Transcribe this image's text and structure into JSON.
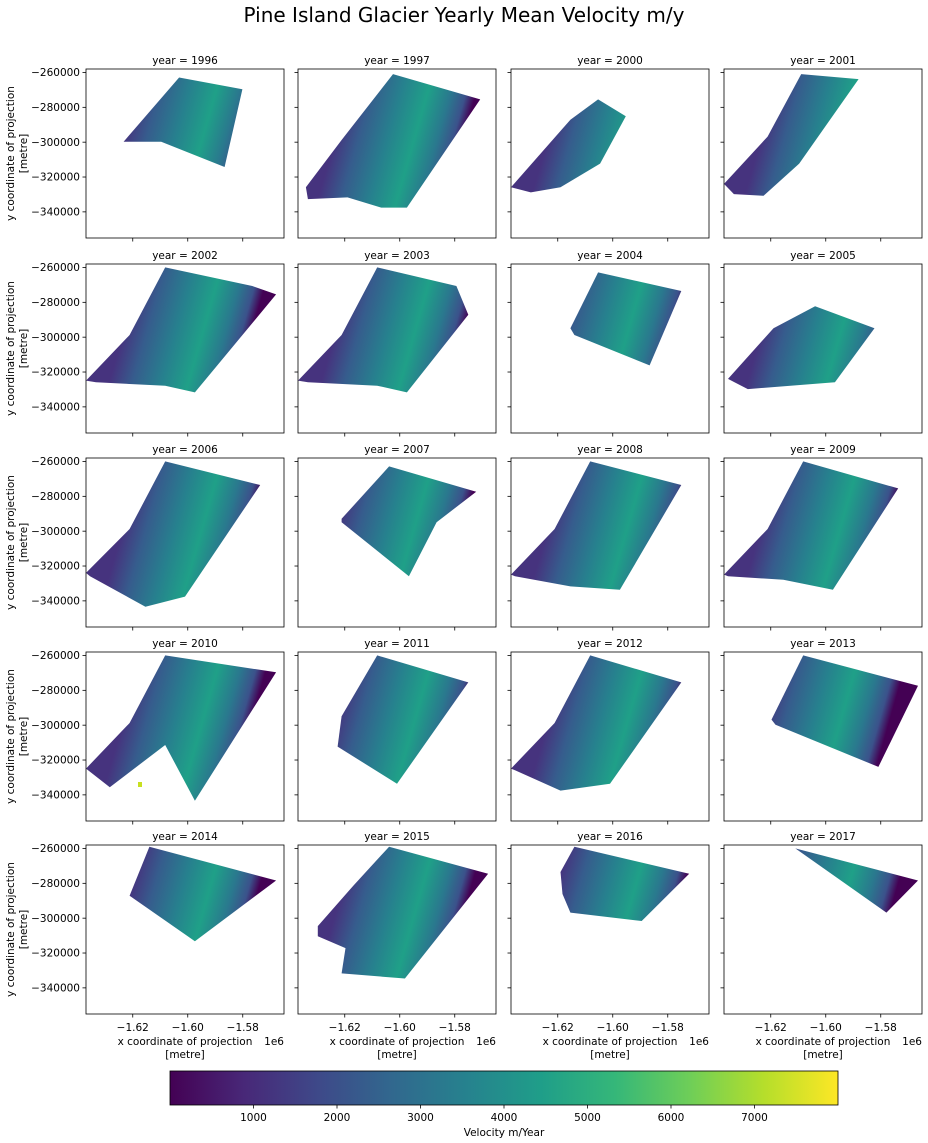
{
  "chart_data": {
    "type": "heatmap",
    "title": "Pine Island Glacier Yearly Mean Velocity m/y",
    "facet_title_template": "year = {year}",
    "years": [
      1996,
      1997,
      2000,
      2001,
      2002,
      2003,
      2004,
      2005,
      2006,
      2007,
      2008,
      2009,
      2010,
      2011,
      2012,
      2013,
      2014,
      2015,
      2016,
      2017
    ],
    "xlabel": "x coordinate of projection\n[metre]",
    "ylabel": "y coordinate of projection\n[metre]",
    "x_ticks": [
      -1.62,
      -1.6,
      -1.58
    ],
    "x_tick_labels": [
      "−1.62",
      "−1.60",
      "−1.58"
    ],
    "x_offset_label": "1e6",
    "xlim": [
      -1.637,
      -1.565
    ],
    "y_ticks": [
      -260000,
      -280000,
      -300000,
      -320000,
      -340000
    ],
    "y_tick_labels": [
      "−260000",
      "−280000",
      "−300000",
      "−320000",
      "−340000"
    ],
    "ylim": [
      -355000,
      -258000
    ],
    "colorbar": {
      "label": "Velocity m/Year",
      "colormap": "viridis",
      "range": [
        0,
        8000
      ],
      "ticks": [
        1000,
        2000,
        3000,
        4000,
        5000,
        6000,
        7000
      ]
    },
    "colors": {
      "viridis_stops": [
        "#440154",
        "#482878",
        "#3e4989",
        "#31688e",
        "#26828e",
        "#1f9e89",
        "#35b779",
        "#6ece58",
        "#b5de2b",
        "#fde725"
      ],
      "bad_point": "#c8e020"
    }
  }
}
